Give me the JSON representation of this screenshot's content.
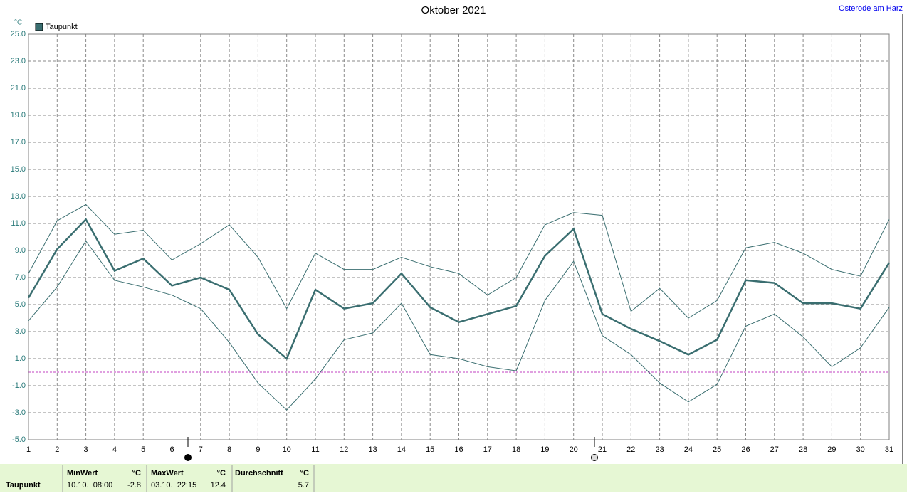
{
  "chart_data": {
    "type": "line",
    "title": "Oktober 2021",
    "location": "Osterode am Harz",
    "unit": "°C",
    "x": [
      1,
      2,
      3,
      4,
      5,
      6,
      7,
      8,
      9,
      10,
      11,
      12,
      13,
      14,
      15,
      16,
      17,
      18,
      19,
      20,
      21,
      22,
      23,
      24,
      25,
      26,
      27,
      28,
      29,
      30,
      31
    ],
    "series": [
      {
        "name": "Taupunkt",
        "color": "#3a6e70",
        "values": [
          5.5,
          9.1,
          11.3,
          7.5,
          8.4,
          6.4,
          7.0,
          6.1,
          2.8,
          1.0,
          6.1,
          4.7,
          5.1,
          7.3,
          4.8,
          3.7,
          4.3,
          4.9,
          8.6,
          10.6,
          4.3,
          3.2,
          2.3,
          1.3,
          2.4,
          6.8,
          6.6,
          5.1,
          5.1,
          4.7,
          8.1
        ],
        "max_values": [
          7.3,
          11.2,
          12.4,
          10.2,
          10.5,
          8.3,
          9.5,
          10.9,
          8.5,
          4.7,
          8.8,
          7.6,
          7.6,
          8.5,
          7.8,
          7.3,
          5.7,
          7.0,
          10.9,
          11.8,
          11.6,
          4.5,
          6.2,
          4.0,
          5.3,
          9.2,
          9.6,
          8.8,
          7.6,
          7.1,
          11.3
        ],
        "min_values": [
          3.8,
          6.3,
          9.7,
          6.8,
          6.3,
          5.7,
          4.7,
          2.2,
          -0.8,
          -2.8,
          -0.5,
          2.4,
          2.9,
          5.1,
          1.3,
          1.0,
          0.4,
          0.1,
          5.3,
          8.2,
          2.7,
          1.3,
          -0.8,
          -2.2,
          -0.9,
          3.4,
          4.3,
          2.6,
          0.4,
          1.8,
          4.8
        ]
      }
    ],
    "xlim": [
      1,
      31
    ],
    "xticks": [
      1,
      2,
      3,
      4,
      5,
      6,
      7,
      8,
      9,
      10,
      11,
      12,
      13,
      14,
      15,
      16,
      17,
      18,
      19,
      20,
      21,
      22,
      23,
      24,
      25,
      26,
      27,
      28,
      29,
      30,
      31
    ],
    "ylim": [
      -5,
      25
    ],
    "yticks": [
      {
        "value": -5,
        "label": "-5.0"
      },
      {
        "value": -3,
        "label": "-3.0"
      },
      {
        "value": -1,
        "label": "-1.0"
      },
      {
        "value": 1,
        "label": "1.0"
      },
      {
        "value": 3,
        "label": "3.0"
      },
      {
        "value": 5,
        "label": "5.0"
      },
      {
        "value": 7,
        "label": "7.0"
      },
      {
        "value": 9,
        "label": "9.0"
      },
      {
        "value": 11,
        "label": "11.0"
      },
      {
        "value": 13,
        "label": "13.0"
      },
      {
        "value": 15,
        "label": "15.0"
      },
      {
        "value": 17,
        "label": "17.0"
      },
      {
        "value": 19,
        "label": "19.0"
      },
      {
        "value": 21,
        "label": "21.0"
      },
      {
        "value": 23,
        "label": "23.0"
      },
      {
        "value": 25,
        "label": "25.0"
      }
    ],
    "zero_line": 0,
    "zero_line_color": "#c040c0",
    "grid": true,
    "legend": "top-left"
  },
  "summary": {
    "label": "Taupunkt",
    "min": {
      "header": "MinWert",
      "unit": "°C",
      "time": "10.10.  08:00",
      "value": -2.8
    },
    "max": {
      "header": "MaxWert",
      "unit": "°C",
      "time": "03.10.  22:15",
      "value": 12.4
    },
    "avg": {
      "header": "Durchschnitt",
      "unit": "°C",
      "value": 5.7
    }
  }
}
